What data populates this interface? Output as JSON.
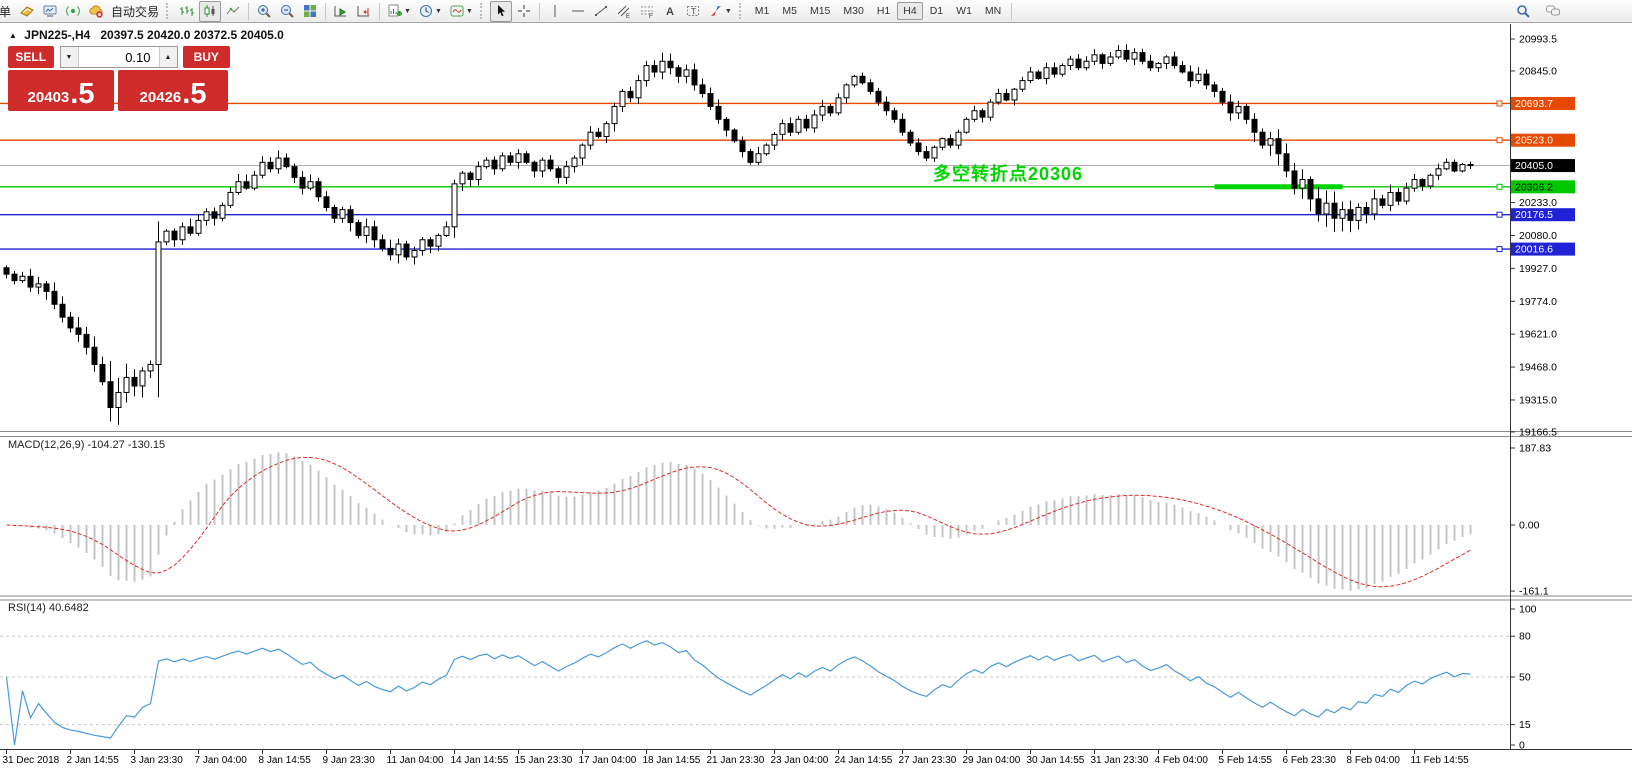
{
  "toolbar": {
    "new_order_partial": "单",
    "auto_trading": "自动交易",
    "timeframes": [
      "M1",
      "M5",
      "M15",
      "M30",
      "H1",
      "H4",
      "D1",
      "W1",
      "MN"
    ],
    "active_timeframe": "H4"
  },
  "chart": {
    "marker": "▲",
    "symbol_period": "JPN225-,H4",
    "ohlc": "20397.5 20420.0 20372.5 20405.0"
  },
  "trade_panel": {
    "sell_label": "SELL",
    "buy_label": "BUY",
    "volume": "0.10",
    "sell_price_main": "20403",
    "sell_price_frac": ".5",
    "buy_price_main": "20426",
    "buy_price_frac": ".5",
    "button_color": "#cf2b2b"
  },
  "chart_data": [
    {
      "type": "candlestick",
      "title": "JPN225-,H4",
      "y_ticks": [
        "20993.5",
        "20845.0",
        "20233.0",
        "20080.0",
        "19927.0",
        "19774.0",
        "19621.0",
        "19468.0",
        "19315.0",
        "19166.5"
      ],
      "ylim": [
        19160,
        21060
      ],
      "x_labels": [
        [
          "31 Dec 2018",
          0
        ],
        [
          "2 Jan 14:55",
          8
        ],
        [
          "3 Jan 23:30",
          16
        ],
        [
          "7 Jan 04:00",
          24
        ],
        [
          "8 Jan 14:55",
          32
        ],
        [
          "9 Jan 23:30",
          40
        ],
        [
          "11 Jan 04:00",
          48
        ],
        [
          "14 Jan 14:55",
          56
        ],
        [
          "15 Jan 23:30",
          64
        ],
        [
          "17 Jan 04:00",
          72
        ],
        [
          "18 Jan 14:55",
          80
        ],
        [
          "21 Jan 23:30",
          88
        ],
        [
          "23 Jan 04:00",
          96
        ],
        [
          "24 Jan 14:55",
          104
        ],
        [
          "27 Jan 23:30",
          112
        ],
        [
          "29 Jan 04:00",
          120
        ],
        [
          "30 Jan 14:55",
          128
        ],
        [
          "31 Jan 23:30",
          136
        ],
        [
          "4 Feb 04:00",
          144
        ],
        [
          "5 Feb 14:55",
          152
        ],
        [
          "6 Feb 23:30",
          160
        ],
        [
          "8 Feb 04:00",
          168
        ],
        [
          "11 Feb 14:55",
          176
        ]
      ],
      "first_open": 19930,
      "closes": [
        19900,
        19870,
        19890,
        19840,
        19855,
        19820,
        19760,
        19700,
        19650,
        19620,
        19560,
        19480,
        19400,
        19280,
        19350,
        19420,
        19380,
        19450,
        19480,
        20050,
        20100,
        20060,
        20120,
        20090,
        20150,
        20190,
        20160,
        20220,
        20280,
        20330,
        20300,
        20360,
        20420,
        20390,
        20440,
        20400,
        20350,
        20300,
        20330,
        20260,
        20210,
        20160,
        20200,
        20140,
        20080,
        20120,
        20060,
        20020,
        19990,
        20040,
        19980,
        20010,
        20060,
        20030,
        20080,
        20120,
        20320,
        20370,
        20340,
        20400,
        20430,
        20390,
        20450,
        20420,
        20460,
        20420,
        20380,
        20430,
        20390,
        20350,
        20400,
        20440,
        20500,
        20560,
        20540,
        20600,
        20680,
        20750,
        20720,
        20800,
        20870,
        20840,
        20890,
        20860,
        20820,
        20850,
        20780,
        20740,
        20680,
        20620,
        20570,
        20520,
        20470,
        20420,
        20460,
        20500,
        20550,
        20600,
        20560,
        20620,
        20580,
        20640,
        20680,
        20650,
        20720,
        20780,
        20820,
        20790,
        20750,
        20700,
        20660,
        20620,
        20560,
        20510,
        20470,
        20440,
        20490,
        20530,
        20500,
        20560,
        20620,
        20660,
        20630,
        20700,
        20740,
        20710,
        20760,
        20800,
        20840,
        20810,
        20860,
        20830,
        20870,
        20900,
        20860,
        20890,
        20920,
        20880,
        20910,
        20940,
        20900,
        20930,
        20890,
        20860,
        20880,
        20910,
        20870,
        20840,
        20800,
        20830,
        20780,
        20750,
        20700,
        20650,
        20680,
        20620,
        20560,
        20500,
        20530,
        20460,
        20380,
        20300,
        20340,
        20250,
        20180,
        20230,
        20160,
        20200,
        20150,
        20210,
        20180,
        20250,
        20220,
        20280,
        20240,
        20300,
        20340,
        20310,
        20360,
        20390,
        20420,
        20380,
        20410,
        20405
      ],
      "wick_anchors": [
        [
          0,
          30
        ],
        [
          8,
          45
        ],
        [
          12,
          80
        ],
        [
          13,
          120
        ],
        [
          18,
          40
        ],
        [
          19,
          160
        ],
        [
          20,
          40
        ],
        [
          32,
          35
        ],
        [
          44,
          45
        ],
        [
          48,
          45
        ],
        [
          55,
          30
        ],
        [
          56,
          90
        ],
        [
          57,
          35
        ],
        [
          72,
          35
        ],
        [
          80,
          45
        ],
        [
          88,
          35
        ],
        [
          104,
          30
        ],
        [
          120,
          25
        ],
        [
          140,
          30
        ],
        [
          152,
          35
        ],
        [
          160,
          60
        ],
        [
          164,
          70
        ],
        [
          168,
          60
        ],
        [
          172,
          40
        ],
        [
          176,
          30
        ],
        [
          183,
          20
        ]
      ],
      "hlines": [
        {
          "price": 20693.7,
          "label": "20693.7",
          "color": "#e64a00",
          "text": "#ffffff"
        },
        {
          "price": 20523.0,
          "label": "20523.0",
          "color": "#e64a00",
          "text": "#ffffff"
        },
        {
          "price": 20405.0,
          "label": "20405.0",
          "color": "#000000",
          "text": "#ffffff",
          "role": "bid"
        },
        {
          "price": 20306.2,
          "label": "20306.2",
          "color": "#00c800",
          "text": "#000000"
        },
        {
          "price": 20176.5,
          "label": "20176.5",
          "color": "#2121d6",
          "text": "#ffffff"
        },
        {
          "price": 20016.6,
          "label": "20016.6",
          "color": "#2121d6",
          "text": "#ffffff"
        }
      ],
      "segment": {
        "price": 20306.2,
        "x_from_bar": 151,
        "x_to_bar": 167,
        "color": "#00d500",
        "width": 5
      },
      "annotation": {
        "text": "多空转折点20306",
        "color": "#00d500"
      }
    },
    {
      "type": "macd",
      "label": "MACD(12,26,9) -104.27 -130.15",
      "params": [
        12,
        26,
        9
      ],
      "y_ticks": [
        "187.83",
        "0.00",
        "-161.1"
      ],
      "current": {
        "macd": -104.27,
        "signal": -130.15
      },
      "histogram_color": "#c4c4c4",
      "signal_color": "#e22b2b"
    },
    {
      "type": "rsi",
      "label": "RSI(14) 40.6482",
      "params": [
        14
      ],
      "y_ticks": [
        "100",
        "80",
        "50",
        "15",
        "0"
      ],
      "levels": [
        80,
        50,
        15
      ],
      "current": 40.6482,
      "line_color": "#4a9ade"
    }
  ]
}
